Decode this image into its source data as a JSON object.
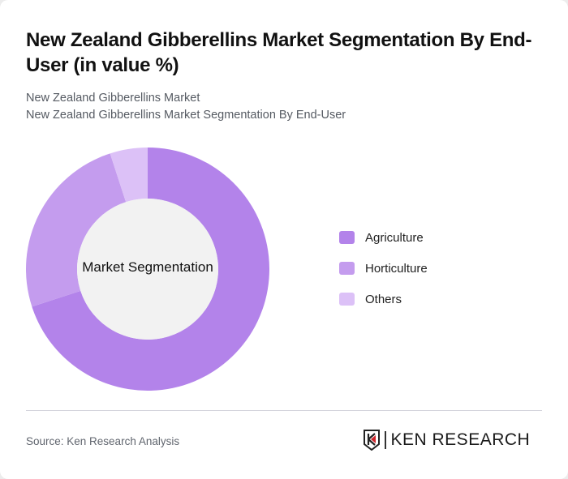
{
  "header": {
    "title": "New Zealand Gibberellins Market Segmentation By End-User (in value %)",
    "subtitle_1": "New Zealand Gibberellins Market",
    "subtitle_2": "New Zealand Gibberellins Market Segmentation By End-User"
  },
  "chart": {
    "center_label": "Market Segmentation"
  },
  "legend": [
    {
      "label": "Agriculture",
      "color": "#b383ea"
    },
    {
      "label": "Horticulture",
      "color": "#c49cee"
    },
    {
      "label": "Others",
      "color": "#dcc1f7"
    }
  ],
  "footer": {
    "source": "Source: Ken Research Analysis",
    "logo_text": "KEN RESEARCH"
  },
  "chart_data": {
    "type": "pie",
    "subtype": "donut",
    "title": "New Zealand Gibberellins Market Segmentation By End-User (in value %)",
    "center_label": "Market Segmentation",
    "categories": [
      "Agriculture",
      "Horticulture",
      "Others"
    ],
    "values": [
      70,
      25,
      5
    ],
    "colors": [
      "#b383ea",
      "#c49cee",
      "#dcc1f7"
    ],
    "legend_position": "right",
    "unit": "%"
  }
}
